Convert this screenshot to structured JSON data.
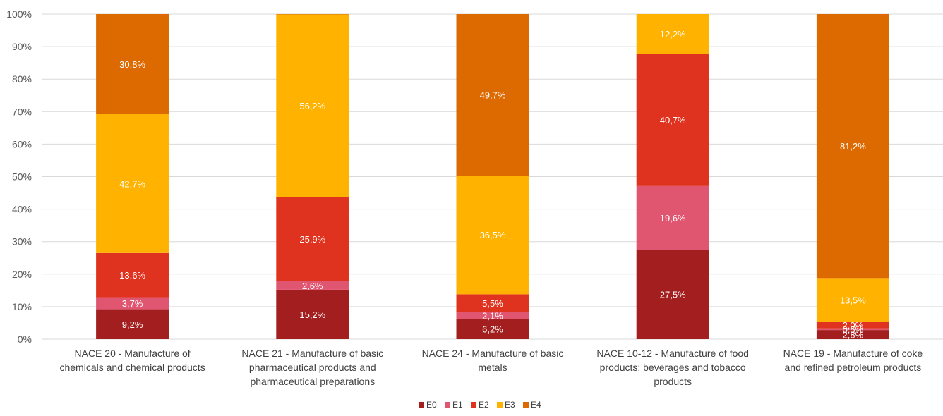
{
  "chart_data": {
    "type": "bar",
    "stacked": true,
    "percent_stacked": true,
    "title": "",
    "xlabel": "",
    "ylabel": "",
    "ylim": [
      0,
      100
    ],
    "y_ticks": [
      "0%",
      "10%",
      "20%",
      "30%",
      "40%",
      "50%",
      "60%",
      "70%",
      "80%",
      "90%",
      "100%"
    ],
    "grid": true,
    "legend_position": "bottom",
    "categories": [
      [
        "NACE 20 - Manufacture of",
        "chemicals and chemical products"
      ],
      [
        "NACE 21 - Manufacture of basic",
        "pharmaceutical products and",
        "pharmaceutical preparations"
      ],
      [
        "NACE 24 - Manufacture of basic",
        "metals"
      ],
      [
        "NACE 10-12 - Manufacture of food",
        "products; beverages and tobacco",
        "products"
      ],
      [
        "NACE 19 -  Manufacture of coke",
        "and refined petroleum products"
      ]
    ],
    "series": [
      {
        "name": "E0",
        "color": "#a31f1f",
        "values": [
          9.2,
          15.2,
          6.2,
          27.5,
          2.8
        ],
        "labels": [
          "9,2%",
          "15,2%",
          "6,2%",
          "27,5%",
          "2,8%"
        ]
      },
      {
        "name": "E1",
        "color": "#e05570",
        "values": [
          3.7,
          2.6,
          2.1,
          19.6,
          0.5
        ],
        "labels": [
          "3,7%",
          "2,6%",
          "2,1%",
          "19,6%",
          "0,5%"
        ]
      },
      {
        "name": "E2",
        "color": "#e0331f",
        "values": [
          13.6,
          25.9,
          5.5,
          40.7,
          2.0
        ],
        "labels": [
          "13,6%",
          "25,9%",
          "5,5%",
          "40,7%",
          "2,0%"
        ]
      },
      {
        "name": "E3",
        "color": "#ffb300",
        "values": [
          42.7,
          56.2,
          36.5,
          12.2,
          13.5
        ],
        "labels": [
          "42,7%",
          "56,2%",
          "36,5%",
          "12,2%",
          "13,5%"
        ]
      },
      {
        "name": "E4",
        "color": "#dd6a00",
        "values": [
          30.8,
          0.1,
          49.7,
          0.0,
          81.2
        ],
        "labels": [
          "30,8%",
          "",
          "49,7%",
          "",
          "81,2%"
        ]
      }
    ]
  }
}
